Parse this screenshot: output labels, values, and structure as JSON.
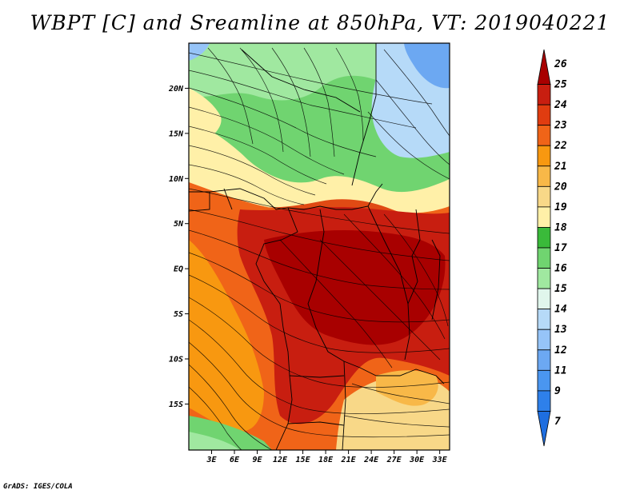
{
  "title": "WBPT [C] and Sreamline at 850hPa, VT: 2019040221",
  "credit": "GrADS: IGES/COLA",
  "chart_data": {
    "type": "heatmap",
    "title": "WBPT [C] and Sreamline at 850hPa, VT: 2019040221",
    "variable": "Wet-bulb potential temperature [C] with 850 hPa streamlines",
    "valid_time": "2019040221",
    "x_axis": {
      "range": [
        0,
        34.3
      ],
      "units": "deg E",
      "tick_values": [
        3,
        6,
        9,
        12,
        15,
        18,
        21,
        24,
        27,
        30,
        33
      ],
      "tick_labels": [
        "3E",
        "6E",
        "9E",
        "12E",
        "15E",
        "18E",
        "21E",
        "24E",
        "27E",
        "30E",
        "33E"
      ]
    },
    "y_axis": {
      "range": [
        -20.1,
        25
      ],
      "units": "deg",
      "tick_values": [
        20,
        15,
        10,
        5,
        0,
        -5,
        -10,
        -15
      ],
      "tick_labels": [
        "20N",
        "15N",
        "10N",
        "5N",
        "EQ",
        "5S",
        "10S",
        "15S"
      ]
    },
    "colorbar": {
      "levels": [
        "7",
        "9",
        "11",
        "12",
        "13",
        "14",
        "15",
        "16",
        "17",
        "18",
        "19",
        "20",
        "21",
        "22",
        "23",
        "24",
        "25",
        "26"
      ],
      "colors": [
        "#1e6ee0",
        "#2e80ea",
        "#4a96f0",
        "#6ca8f2",
        "#96c4f8",
        "#b6daf8",
        "#e0f6ec",
        "#a0e8a0",
        "#70d470",
        "#3aba3a",
        "#fff0a8",
        "#f8d888",
        "#f8b848",
        "#f89810",
        "#f06418",
        "#e03c10",
        "#c81e10",
        "#a80000"
      ]
    },
    "regions": [
      {
        "name": "northwest-green",
        "color": "#a0e8a0",
        "approx_range": "16-17"
      },
      {
        "name": "northeast-blue",
        "color": "#b6daf8",
        "approx_range": "13-15"
      },
      {
        "name": "tropical-core",
        "color": "#c81e10",
        "approx_range": "24-26"
      },
      {
        "name": "atlantic-orange",
        "color": "#f06418",
        "approx_range": "22-24"
      },
      {
        "name": "southeast-tan",
        "color": "#f8d888",
        "approx_range": "19-21"
      },
      {
        "name": "southwest-green",
        "color": "#70d470",
        "approx_range": "16-17"
      }
    ]
  }
}
